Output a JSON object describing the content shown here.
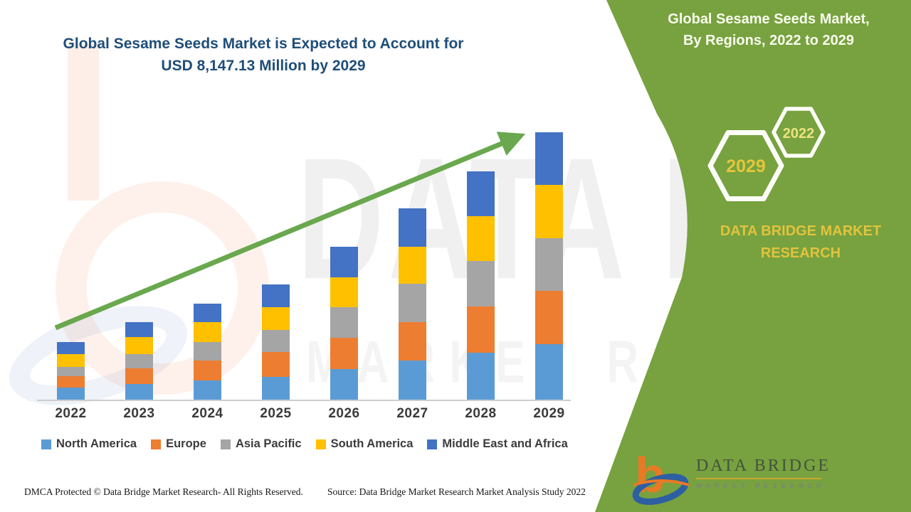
{
  "header": {
    "title_line1": "Global Sesame Seeds Market is Expected to Account for",
    "title_line2": "USD 8,147.13 Million by 2029",
    "title_color": "#1F4E79"
  },
  "side_panel": {
    "bg_color": "#77A23F",
    "title_line1": "Global Sesame Seeds Market,",
    "title_line2": "By Regions, 2022 to 2029",
    "hexagons": [
      {
        "label": "2029",
        "label_color": "#E5C53C"
      },
      {
        "label": "2022",
        "label_color": "#EDE282"
      }
    ],
    "brand_text": "DATA BRIDGE MARKET RESEARCH",
    "brand_color": "#E2C33C"
  },
  "chart_data": {
    "type": "bar",
    "stacked": true,
    "categories": [
      "2022",
      "2023",
      "2024",
      "2025",
      "2026",
      "2027",
      "2028",
      "2029"
    ],
    "series": [
      {
        "name": "North America",
        "color": "#5B9BD5",
        "values": [
          368,
          477,
          585,
          693,
          932,
          1192,
          1430,
          1690
        ]
      },
      {
        "name": "Europe",
        "color": "#ED7D31",
        "values": [
          347,
          477,
          607,
          758,
          953,
          1170,
          1409,
          1625
        ]
      },
      {
        "name": "Asia Pacific",
        "color": "#A5A5A5",
        "values": [
          282,
          433,
          563,
          672,
          932,
          1170,
          1387,
          1604
        ]
      },
      {
        "name": "South America",
        "color": "#FFC000",
        "values": [
          390,
          520,
          607,
          693,
          910,
          1127,
          1365,
          1625
        ]
      },
      {
        "name": "Middle East and Africa",
        "color": "#4472C4",
        "values": [
          368,
          455,
          563,
          693,
          932,
          1170,
          1365,
          1603.13
        ]
      }
    ],
    "totals": [
      1755,
      2362,
      2925,
      3509,
      4659,
      5829,
      6956,
      8147.13
    ],
    "unit": "USD Million (estimated from bar heights; 2029 anchored to 8,147.13)",
    "ylim": [
      0,
      8500
    ],
    "grid": false,
    "y_axis_visible": false,
    "legend_position": "bottom",
    "trend_arrow": true,
    "trend_arrow_color": "#69A84E"
  },
  "watermark": {
    "big_text": "DATA B",
    "sub_text": "MARKET RESE"
  },
  "footer": {
    "left": "DMCA Protected © Data Bridge Market Research- All Rights Reserved.",
    "source": "Source: Data Bridge Market Research Market Analysis Study 2022"
  },
  "logo": {
    "b_color": "#E87A26",
    "swoosh_color": "#2E5FA3",
    "name": "DATA BRIDGE",
    "subtext": "MARKET RESEARCH"
  }
}
